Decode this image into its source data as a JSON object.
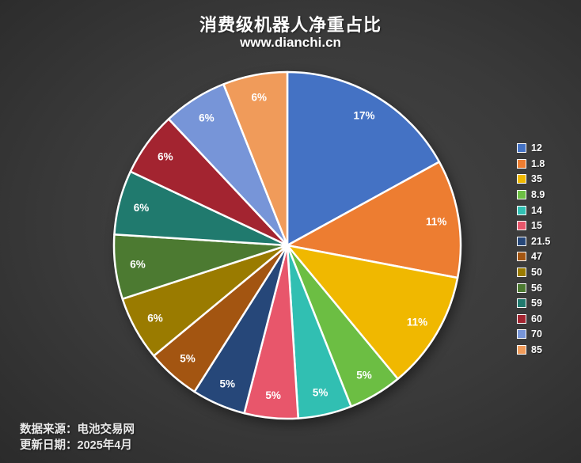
{
  "title": "消费级机器人净重占比",
  "subtitle": "www.dianchi.cn",
  "footer": {
    "line1": "数据来源：电池交易网",
    "line2": "更新日期：2025年4月"
  },
  "chart_data": {
    "type": "pie",
    "title": "消费级机器人净重占比",
    "subtitle": "www.dianchi.cn",
    "legend_position": "right",
    "start_angle": "top",
    "direction": "clockwise",
    "slices": [
      {
        "category": "12",
        "percent": 17,
        "label": "17%",
        "color": "#4472C4"
      },
      {
        "category": "1.8",
        "percent": 11,
        "label": "11%",
        "color": "#ED7D31"
      },
      {
        "category": "35",
        "percent": 11,
        "label": "11%",
        "color": "#F0B800"
      },
      {
        "category": "8.9",
        "percent": 5,
        "label": "5%",
        "color": "#6CBE43"
      },
      {
        "category": "14",
        "percent": 5,
        "label": "5%",
        "color": "#31BFB2"
      },
      {
        "category": "15",
        "percent": 5,
        "label": "5%",
        "color": "#E8566B"
      },
      {
        "category": "21.5",
        "percent": 5,
        "label": "5%",
        "color": "#264779"
      },
      {
        "category": "47",
        "percent": 5,
        "label": "5%",
        "color": "#A35511"
      },
      {
        "category": "50",
        "percent": 6,
        "label": "6%",
        "color": "#9A7B00"
      },
      {
        "category": "56",
        "percent": 6,
        "label": "6%",
        "color": "#4C7A31"
      },
      {
        "category": "59",
        "percent": 6,
        "label": "6%",
        "color": "#207A6E"
      },
      {
        "category": "60",
        "percent": 6,
        "label": "6%",
        "color": "#A32430"
      },
      {
        "category": "70",
        "percent": 6,
        "label": "6%",
        "color": "#7795D8"
      },
      {
        "category": "85",
        "percent": 6,
        "label": "6%",
        "color": "#F09B5A"
      }
    ]
  }
}
